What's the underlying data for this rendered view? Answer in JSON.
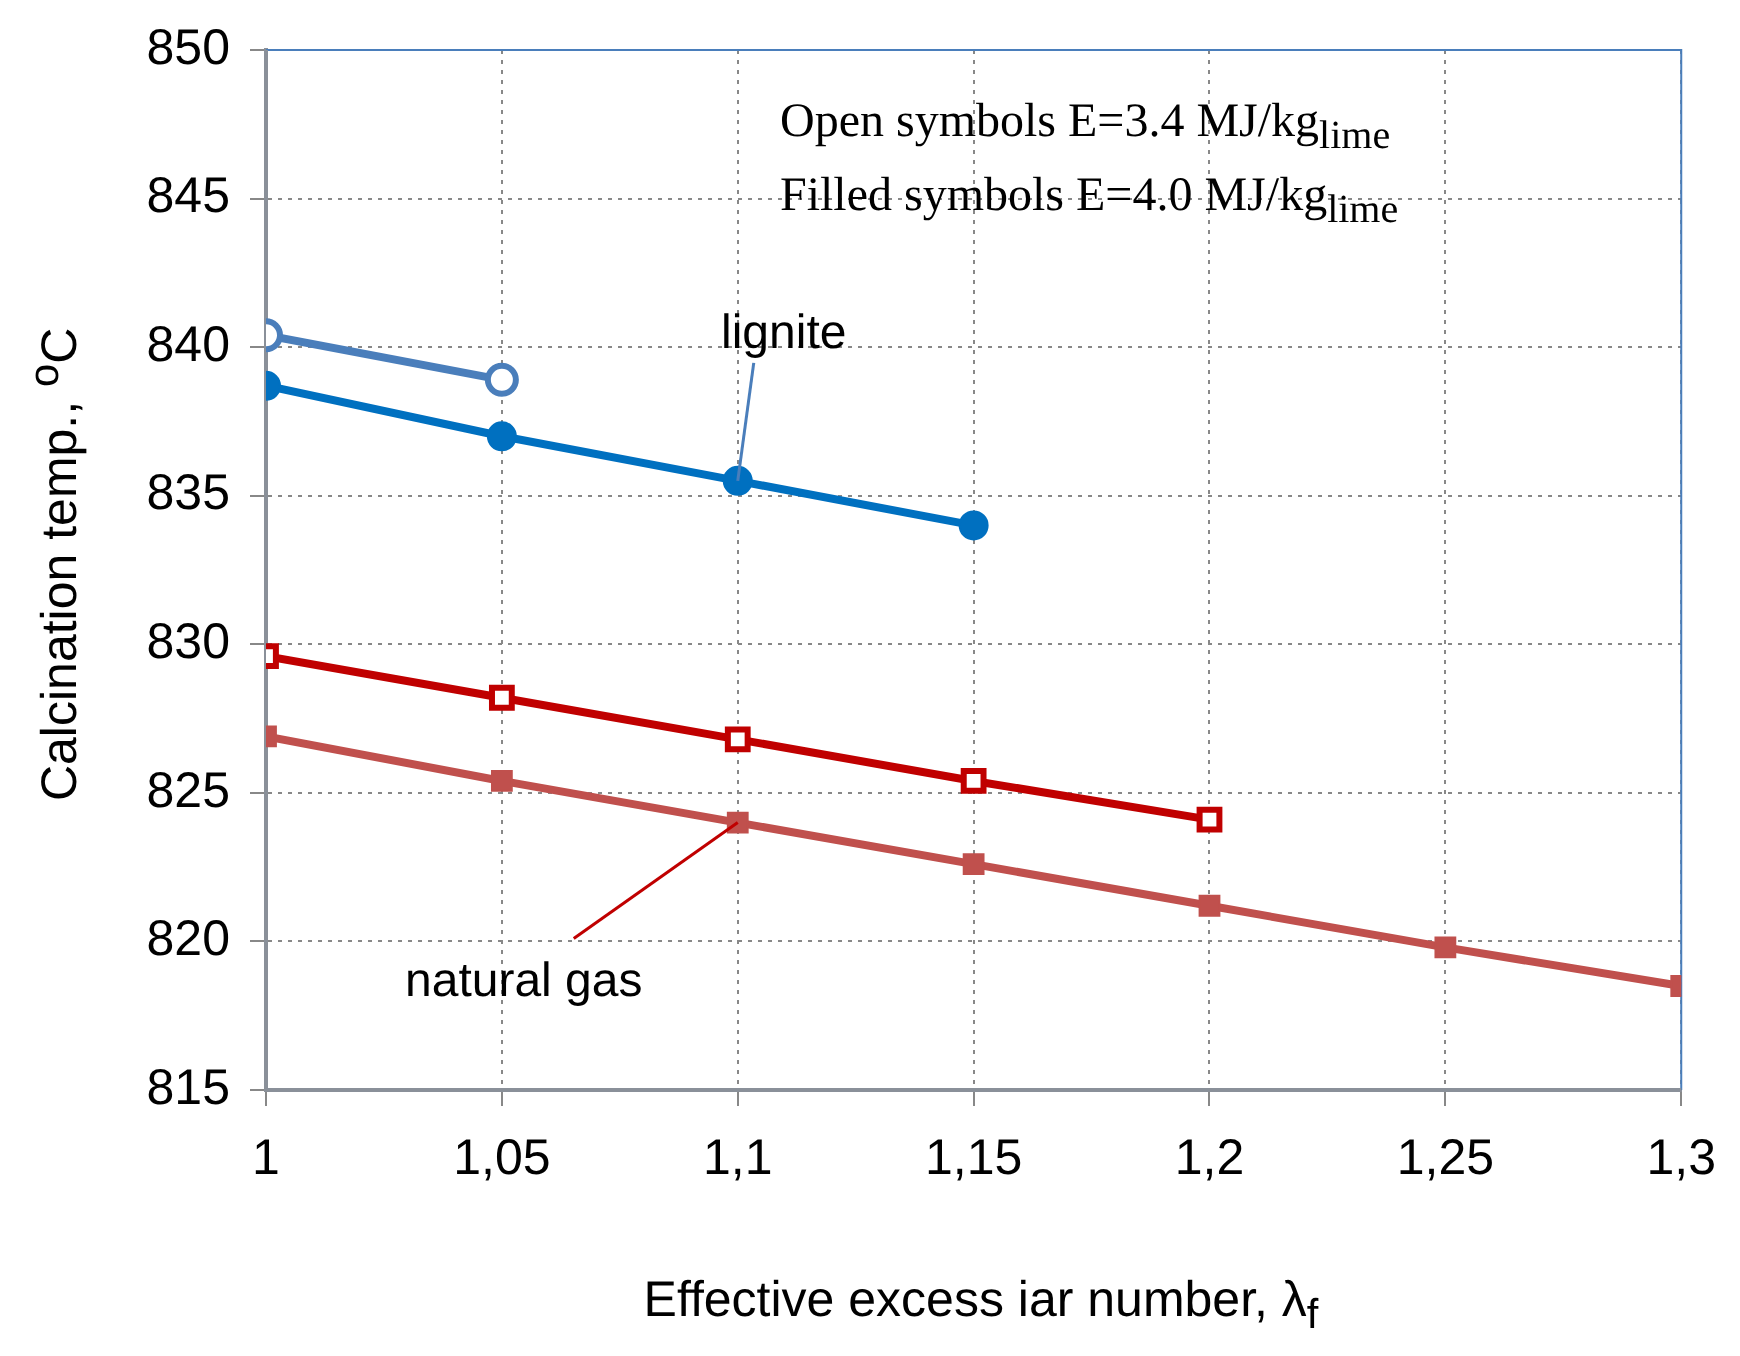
{
  "chart_data": {
    "type": "line",
    "xlabel": "Effective excess iar number, λ$_{f}$",
    "ylabel": "Calcination temp., $^{o}$C",
    "xlim": [
      1,
      1.3
    ],
    "xticks": [
      1,
      {
        "value": 1.05,
        "label": "1,05"
      },
      {
        "value": 1.1,
        "label": "1,1"
      },
      {
        "value": 1.15,
        "label": "1,15"
      },
      {
        "value": 1.2,
        "label": "1,2"
      },
      {
        "value": 1.25,
        "label": "1,25"
      },
      {
        "value": 1.3,
        "label": "1,3"
      }
    ],
    "ylim": [
      815,
      850
    ],
    "yticks": [
      815,
      820,
      825,
      830,
      835,
      840,
      845,
      850
    ],
    "grid": true,
    "series": [
      {
        "color": "#4a7ebb",
        "marker": "circle",
        "x": [
          1,
          1.05
        ],
        "values": [
          840.4,
          838.9
        ]
      },
      {
        "color": "#0070c0",
        "marker": "circle",
        "x": [
          1,
          1.05,
          1.1,
          1.15
        ],
        "values": [
          838.7,
          837.0,
          835.5,
          834.0
        ]
      },
      {
        "color": "#c00000",
        "marker": "square",
        "x": [
          1,
          1.05,
          1.1,
          1.15,
          1.2
        ],
        "values": [
          829.6,
          828.2,
          826.8,
          825.4,
          824.1
        ]
      },
      {
        "color": "#c0504d",
        "marker": "square",
        "x": [
          1,
          1.05,
          1.1,
          1.15,
          1.2,
          1.25,
          1.3
        ],
        "values": [
          826.9,
          825.4,
          824.0,
          822.6,
          821.2,
          819.8,
          818.5
        ]
      }
    ],
    "annotations": [
      "Open symbols E=3.4 MJ/kg$_{lime}$",
      "Filled symbols E=4.0 MJ/kg$_{lime}$",
      {
        "text": "lignite",
        "x": 1.1,
        "y": 835.5
      },
      {
        "text": "natural gas",
        "x": 1.1,
        "y": 824.0
      }
    ]
  }
}
